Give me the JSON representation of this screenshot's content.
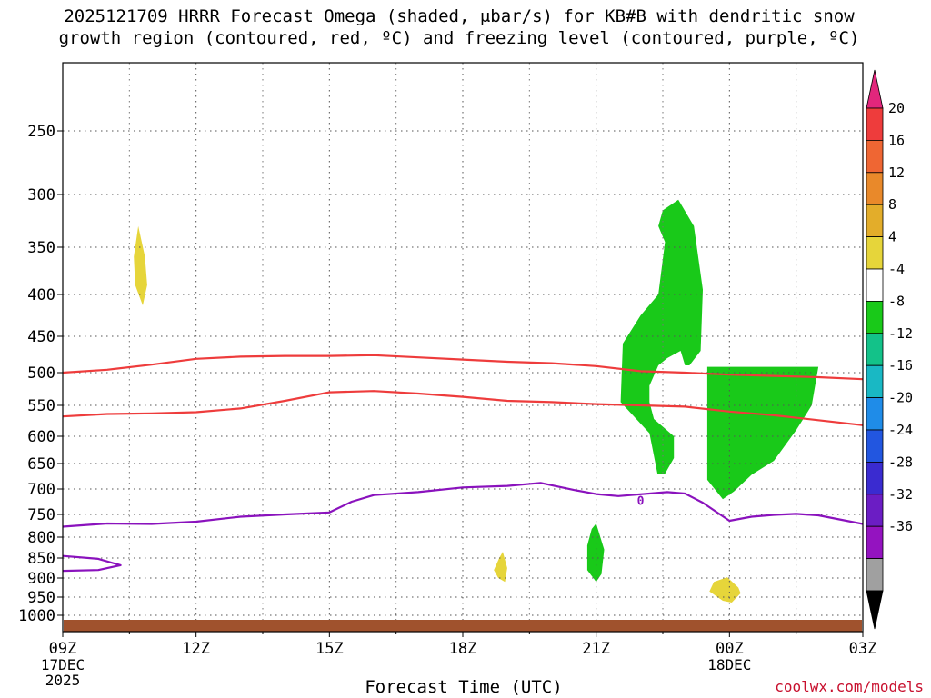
{
  "title_line1": "2025121709 HRRR Forecast Omega (shaded, μbar/s) for KB#B with dendritic snow",
  "title_line2": "growth region (contoured, red, ºC) and freezing level (contoured, purple, ºC)",
  "footer": {
    "credit": "coolwx.com/models"
  },
  "chart_data": {
    "type": "heatmap",
    "xlabel": "Forecast Time (UTC)",
    "x_ticks": [
      {
        "hour": 0,
        "label": "09Z",
        "sub1": "17DEC",
        "sub2": "2025"
      },
      {
        "hour": 3,
        "label": "12Z"
      },
      {
        "hour": 6,
        "label": "15Z"
      },
      {
        "hour": 9,
        "label": "18Z"
      },
      {
        "hour": 12,
        "label": "21Z"
      },
      {
        "hour": 15,
        "label": "00Z",
        "sub1": "18DEC"
      },
      {
        "hour": 18,
        "label": "03Z"
      }
    ],
    "y_ticks_hpa": [
      250,
      300,
      350,
      400,
      450,
      500,
      550,
      600,
      650,
      700,
      750,
      800,
      850,
      900,
      950,
      1000
    ],
    "y_scale": "pressure",
    "grid": true,
    "colorbar": {
      "labels": [
        "20",
        "16",
        "12",
        "8",
        "4",
        "-4",
        "-8",
        "-12",
        "-16",
        "-20",
        "-24",
        "-28",
        "-32",
        "-36"
      ],
      "colors": [
        "#e2267c",
        "#ee3c3c",
        "#ef6633",
        "#e9892a",
        "#e3ad2a",
        "#e6d53a",
        "#ffffff",
        "#19c919",
        "#13c289",
        "#19b8c4",
        "#1f8ce8",
        "#2256e0",
        "#3a2bd0",
        "#6b1dc4",
        "#9413c0",
        "#a0a0a0",
        "#000000"
      ]
    },
    "omega_regions": [
      {
        "name": "upper-yellow",
        "value_range": "4 to 8",
        "color": "#e6d53a",
        "points": [
          [
            1.7,
            330
          ],
          [
            1.85,
            360
          ],
          [
            1.9,
            390
          ],
          [
            1.8,
            413
          ],
          [
            1.63,
            390
          ],
          [
            1.6,
            360
          ]
        ]
      },
      {
        "name": "green-tower",
        "value_range": "-4 to -8",
        "color": "#19c919",
        "points": [
          [
            13.38,
            670
          ],
          [
            13.2,
            595
          ],
          [
            12.55,
            545
          ],
          [
            12.6,
            460
          ],
          [
            13.0,
            425
          ],
          [
            13.4,
            400
          ],
          [
            13.55,
            345
          ],
          [
            13.4,
            330
          ],
          [
            13.5,
            315
          ],
          [
            13.85,
            305
          ],
          [
            14.2,
            330
          ],
          [
            14.4,
            395
          ],
          [
            14.35,
            470
          ],
          [
            14.1,
            490
          ],
          [
            14.0,
            490
          ],
          [
            13.9,
            470
          ],
          [
            13.6,
            480
          ],
          [
            13.4,
            490
          ],
          [
            13.2,
            520
          ],
          [
            13.2,
            545
          ],
          [
            13.3,
            572
          ],
          [
            13.75,
            600
          ],
          [
            13.75,
            640
          ],
          [
            13.55,
            670
          ]
        ]
      },
      {
        "name": "green-block",
        "value_range": "-4 to -8",
        "color": "#19c919",
        "points": [
          [
            14.5,
            492
          ],
          [
            17.0,
            492
          ],
          [
            16.85,
            550
          ],
          [
            16.5,
            590
          ],
          [
            16.0,
            645
          ],
          [
            15.5,
            672
          ],
          [
            15.1,
            705
          ],
          [
            14.85,
            720
          ],
          [
            14.5,
            682
          ],
          [
            14.5,
            560
          ]
        ]
      },
      {
        "name": "lower-green",
        "value_range": "-4 to -8",
        "color": "#19c919",
        "points": [
          [
            12.0,
            770
          ],
          [
            12.18,
            830
          ],
          [
            12.12,
            890
          ],
          [
            12.0,
            910
          ],
          [
            11.8,
            880
          ],
          [
            11.8,
            820
          ],
          [
            11.9,
            782
          ]
        ]
      },
      {
        "name": "lower-yellow-1",
        "value_range": "4 to 8",
        "color": "#e6d53a",
        "points": [
          [
            9.9,
            835
          ],
          [
            10.0,
            875
          ],
          [
            9.95,
            910
          ],
          [
            9.8,
            900
          ],
          [
            9.7,
            880
          ],
          [
            9.82,
            850
          ]
        ]
      },
      {
        "name": "lower-yellow-2",
        "value_range": "4 to 8",
        "color": "#e6d53a",
        "points": [
          [
            15.2,
            925
          ],
          [
            15.25,
            940
          ],
          [
            15.05,
            965
          ],
          [
            14.85,
            960
          ],
          [
            14.55,
            935
          ],
          [
            14.65,
            910
          ],
          [
            14.95,
            898
          ]
        ]
      }
    ],
    "dgz_contours": [
      {
        "name": "dgz-top",
        "color": "#ee3c3c",
        "points": [
          [
            0,
            500
          ],
          [
            1,
            496
          ],
          [
            2,
            489
          ],
          [
            3,
            481
          ],
          [
            4,
            478
          ],
          [
            5,
            477
          ],
          [
            6,
            477
          ],
          [
            7,
            476
          ],
          [
            8,
            479
          ],
          [
            9,
            482
          ],
          [
            10,
            485
          ],
          [
            11,
            487
          ],
          [
            12,
            491
          ],
          [
            13,
            498
          ],
          [
            14,
            500
          ],
          [
            15,
            503
          ],
          [
            16,
            505
          ],
          [
            17,
            507
          ],
          [
            18,
            510
          ]
        ]
      },
      {
        "name": "dgz-bottom",
        "color": "#ee3c3c",
        "points": [
          [
            0,
            568
          ],
          [
            1,
            564
          ],
          [
            2,
            563
          ],
          [
            3,
            561
          ],
          [
            4,
            555
          ],
          [
            5,
            543
          ],
          [
            6,
            530
          ],
          [
            7,
            528
          ],
          [
            8,
            532
          ],
          [
            9,
            537
          ],
          [
            10,
            543
          ],
          [
            11,
            545
          ],
          [
            12,
            548
          ],
          [
            13,
            550
          ],
          [
            14,
            552
          ],
          [
            15,
            560
          ],
          [
            16,
            566
          ],
          [
            17,
            574
          ],
          [
            18,
            582
          ]
        ]
      }
    ],
    "freezing_level": {
      "label": "0",
      "color": "#8a12bd",
      "label_at": [
        13.0,
        722
      ],
      "main": [
        [
          0,
          777
        ],
        [
          1,
          770
        ],
        [
          2,
          771
        ],
        [
          3,
          766
        ],
        [
          4,
          755
        ],
        [
          5,
          750
        ],
        [
          6,
          746
        ],
        [
          6.5,
          725
        ],
        [
          7,
          712
        ],
        [
          8,
          706
        ],
        [
          9,
          697
        ],
        [
          10,
          694
        ],
        [
          10.75,
          688
        ],
        [
          11.5,
          702
        ],
        [
          12,
          710
        ],
        [
          12.5,
          714
        ],
        [
          13.6,
          706
        ],
        [
          14.0,
          709
        ],
        [
          14.4,
          727
        ],
        [
          15.0,
          764
        ],
        [
          15.5,
          755
        ],
        [
          16.0,
          751
        ],
        [
          16.5,
          749
        ],
        [
          17.0,
          752
        ],
        [
          18,
          771
        ]
      ],
      "loop": [
        [
          0,
          845
        ],
        [
          0.8,
          852
        ],
        [
          1.3,
          868
        ],
        [
          0.8,
          880
        ],
        [
          0,
          882
        ]
      ]
    }
  }
}
